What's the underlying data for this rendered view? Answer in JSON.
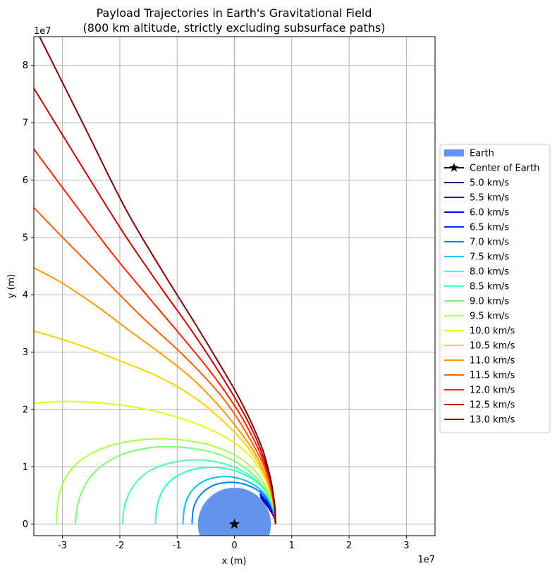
{
  "chart_data": {
    "type": "line",
    "title": "Payload Trajectories in Earth's Gravitational Field",
    "subtitle": "(800 km altitude, strictly excluding subsurface paths)",
    "xlabel": "x (m)",
    "ylabel": "y (m)",
    "x_exponent_label": "1e7",
    "y_exponent_label": "1e7",
    "xlim": [
      -3.5,
      3.5
    ],
    "ylim": [
      -0.2,
      8.5
    ],
    "x_unit_multiplier": 10000000,
    "y_unit_multiplier": 10000000,
    "xticks": [
      -3,
      -2,
      -1,
      0,
      1,
      2,
      3
    ],
    "yticks": [
      0,
      1,
      2,
      3,
      4,
      5,
      6,
      7,
      8
    ],
    "grid": true,
    "legend_position": "center-right-outside",
    "earth": {
      "label": "Earth",
      "radius": 0.6371,
      "color": "#6495ed"
    },
    "center_marker": {
      "label": "Center of Earth",
      "x": 0,
      "y": 0,
      "color": "#000000"
    },
    "series": [
      {
        "name": "5.0 km/s",
        "color": "#00007f",
        "x": [
          0.7171,
          0.71,
          0.69,
          0.66,
          0.63,
          0.6,
          0.57,
          0.54,
          0.51,
          0.48,
          0.455
        ],
        "y": [
          0,
          0.06,
          0.12,
          0.18,
          0.23,
          0.28,
          0.32,
          0.36,
          0.4,
          0.44,
          0.47
        ]
      },
      {
        "name": "5.5 km/s",
        "color": "#0000b2",
        "x": [
          0.7171,
          0.71,
          0.69,
          0.66,
          0.63,
          0.6,
          0.57,
          0.54,
          0.51,
          0.48,
          0.45
        ],
        "y": [
          0,
          0.07,
          0.13,
          0.19,
          0.25,
          0.3,
          0.34,
          0.38,
          0.42,
          0.46,
          0.5
        ]
      },
      {
        "name": "6.0 km/s",
        "color": "#0000f1",
        "x": [
          0.7171,
          0.71,
          0.69,
          0.66,
          0.63,
          0.6,
          0.57,
          0.54,
          0.51,
          0.48,
          0.445
        ],
        "y": [
          0,
          0.07,
          0.14,
          0.21,
          0.27,
          0.32,
          0.37,
          0.41,
          0.45,
          0.49,
          0.53
        ]
      },
      {
        "name": "6.5 km/s",
        "color": "#0030ff",
        "x": [
          0.7171,
          0.71,
          0.69,
          0.66,
          0.63,
          0.6,
          0.57,
          0.54,
          0.51,
          0.48,
          0.44
        ],
        "y": [
          0,
          0.08,
          0.16,
          0.23,
          0.3,
          0.36,
          0.41,
          0.46,
          0.5,
          0.54,
          0.58
        ]
      },
      {
        "name": "7.0 km/s",
        "color": "#0080ff",
        "x": [
          0.7171,
          0.7,
          0.65,
          0.57,
          0.45,
          0.3,
          0.12,
          -0.08,
          -0.3,
          -0.5,
          -0.64,
          -0.72,
          -0.74
        ],
        "y": [
          0,
          0.15,
          0.3,
          0.44,
          0.56,
          0.65,
          0.71,
          0.73,
          0.7,
          0.6,
          0.45,
          0.25,
          0
        ]
      },
      {
        "name": "7.5 km/s",
        "color": "#00c4ff",
        "x": [
          0.7171,
          0.7,
          0.64,
          0.55,
          0.42,
          0.26,
          0.07,
          -0.15,
          -0.4,
          -0.62,
          -0.78,
          -0.87,
          -0.9
        ],
        "y": [
          0,
          0.17,
          0.34,
          0.5,
          0.63,
          0.73,
          0.8,
          0.83,
          0.8,
          0.7,
          0.53,
          0.3,
          0
        ]
      },
      {
        "name": "8.0 km/s",
        "color": "#29ffce",
        "x": [
          0.7171,
          0.7,
          0.64,
          0.54,
          0.38,
          0.18,
          -0.05,
          -0.35,
          -0.7,
          -1.0,
          -1.22,
          -1.34,
          -1.38
        ],
        "y": [
          0,
          0.2,
          0.4,
          0.58,
          0.74,
          0.86,
          0.95,
          0.99,
          0.96,
          0.84,
          0.64,
          0.36,
          0
        ]
      },
      {
        "name": "8.5 km/s",
        "color": "#4fffa7",
        "x": [
          0.7171,
          0.7,
          0.63,
          0.52,
          0.36,
          0.15,
          -0.1,
          -0.4,
          -0.75,
          -1.1,
          -1.4,
          -1.65,
          -1.82,
          -1.92,
          -1.95
        ],
        "y": [
          0,
          0.2,
          0.4,
          0.6,
          0.78,
          0.92,
          1.03,
          1.1,
          1.12,
          1.07,
          0.97,
          0.8,
          0.57,
          0.3,
          0
        ]
      },
      {
        "name": "9.0 km/s",
        "color": "#7cff79",
        "x": [
          0.7171,
          0.7,
          0.62,
          0.5,
          0.32,
          0.08,
          -0.22,
          -0.6,
          -1.05,
          -1.5,
          -1.95,
          -2.3,
          -2.56,
          -2.72,
          -2.78
        ],
        "y": [
          0,
          0.22,
          0.45,
          0.67,
          0.87,
          1.05,
          1.2,
          1.3,
          1.35,
          1.33,
          1.22,
          1.03,
          0.76,
          0.4,
          0
        ]
      },
      {
        "name": "9.5 km/s",
        "color": "#aaff4d",
        "x": [
          0.7171,
          0.7,
          0.62,
          0.5,
          0.33,
          0.1,
          -0.2,
          -0.6,
          -1.2,
          -1.8,
          -2.3,
          -2.7,
          -2.95,
          -3.08,
          -3.1
        ],
        "y": [
          0,
          0.25,
          0.5,
          0.74,
          0.96,
          1.15,
          1.3,
          1.42,
          1.49,
          1.45,
          1.32,
          1.1,
          0.8,
          0.4,
          0
        ]
      },
      {
        "name": "10.0 km/s",
        "color": "#deff1a",
        "x": [
          0.7171,
          0.7,
          0.64,
          0.55,
          0.42,
          0.22,
          -0.05,
          -0.4,
          -0.8,
          -1.3,
          -1.8,
          -2.4,
          -2.85,
          -3.2,
          -3.5
        ],
        "y": [
          0,
          0.25,
          0.5,
          0.75,
          1.0,
          1.24,
          1.45,
          1.64,
          1.8,
          1.95,
          2.05,
          2.12,
          2.14,
          2.13,
          2.11
        ]
      },
      {
        "name": "10.5 km/s",
        "color": "#ffd200",
        "x": [
          0.7171,
          0.7,
          0.65,
          0.57,
          0.45,
          0.3,
          0.1,
          -0.2,
          -0.55,
          -1.0,
          -1.5,
          -2.0,
          -2.5,
          -3.0,
          -3.5
        ],
        "y": [
          0,
          0.25,
          0.5,
          0.75,
          1.0,
          1.25,
          1.5,
          1.8,
          2.1,
          2.4,
          2.65,
          2.85,
          3.05,
          3.22,
          3.37
        ]
      },
      {
        "name": "11.0 km/s",
        "color": "#ff9900",
        "x": [
          0.7171,
          0.7,
          0.65,
          0.58,
          0.48,
          0.35,
          0.18,
          -0.05,
          -0.35,
          -0.75,
          -1.25,
          -1.8,
          -2.4,
          -3.0,
          -3.5
        ],
        "y": [
          0,
          0.25,
          0.5,
          0.75,
          1.0,
          1.25,
          1.5,
          1.8,
          2.15,
          2.55,
          2.95,
          3.35,
          3.8,
          4.2,
          4.47
        ]
      },
      {
        "name": "11.5 km/s",
        "color": "#ff5f00",
        "x": [
          0.7171,
          0.7,
          0.66,
          0.6,
          0.52,
          0.4,
          0.25,
          0.05,
          -0.2,
          -0.55,
          -1.0,
          -1.6,
          -2.25,
          -2.9,
          -3.5
        ],
        "y": [
          0,
          0.25,
          0.5,
          0.75,
          1.0,
          1.25,
          1.52,
          1.85,
          2.2,
          2.6,
          3.05,
          3.6,
          4.25,
          4.9,
          5.52
        ]
      },
      {
        "name": "12.0 km/s",
        "color": "#ff2500",
        "x": [
          0.7171,
          0.7,
          0.67,
          0.62,
          0.54,
          0.44,
          0.3,
          0.12,
          -0.12,
          -0.45,
          -0.9,
          -1.45,
          -2.1,
          -2.8,
          -3.5
        ],
        "y": [
          0,
          0.25,
          0.5,
          0.75,
          1.0,
          1.26,
          1.55,
          1.88,
          2.25,
          2.7,
          3.25,
          3.9,
          4.68,
          5.6,
          6.54
        ]
      },
      {
        "name": "12.5 km/s",
        "color": "#c60000",
        "x": [
          0.7171,
          0.71,
          0.68,
          0.63,
          0.56,
          0.47,
          0.35,
          0.18,
          -0.05,
          -0.35,
          -0.75,
          -1.3,
          -1.95,
          -2.7,
          -3.5
        ],
        "y": [
          0,
          0.25,
          0.5,
          0.75,
          1.0,
          1.27,
          1.56,
          1.9,
          2.3,
          2.78,
          3.38,
          4.15,
          5.1,
          6.3,
          7.6
        ]
      },
      {
        "name": "13.0 km/s",
        "color": "#7f0000",
        "x": [
          0.7171,
          0.71,
          0.68,
          0.64,
          0.58,
          0.5,
          0.38,
          0.22,
          0.0,
          -0.3,
          -0.7,
          -1.25,
          -1.9,
          -2.6,
          -3.4
        ],
        "y": [
          0,
          0.25,
          0.5,
          0.75,
          1.0,
          1.28,
          1.58,
          1.93,
          2.35,
          2.86,
          3.52,
          4.4,
          5.5,
          6.9,
          8.5
        ]
      }
    ]
  }
}
